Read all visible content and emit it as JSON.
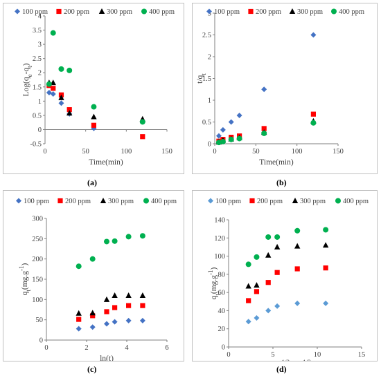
{
  "chart_data": [
    {
      "type": "scatter",
      "panel_label": "(a)",
      "xlabel": "Time(min)",
      "ylabel_main": "Log(q",
      "ylabel_sub1": "e",
      "ylabel_mid": "-q",
      "ylabel_sub2": "t",
      "ylabel_end": ")",
      "xlim": [
        0,
        150
      ],
      "ylim": [
        -0.5,
        4
      ],
      "xticks": [
        0,
        50,
        100,
        150
      ],
      "xtick_labels": [
        "0",
        "50",
        "100",
        "150"
      ],
      "yticks": [
        -0.5,
        0,
        0.5,
        1,
        1.5,
        2,
        2.5,
        3,
        3.5,
        4
      ],
      "ytick_labels": [
        "-0.5",
        "0",
        "0.5",
        "1",
        "1.5",
        "2",
        "2.5",
        "3",
        "3.5",
        "4"
      ],
      "legend_position": "top",
      "series": [
        {
          "name": "100 ppm",
          "color": "#4472c4",
          "marker": "diamond",
          "x": [
            5,
            10,
            20,
            30,
            60
          ],
          "y": [
            1.3,
            1.25,
            0.93,
            0.55,
            0.04
          ]
        },
        {
          "name": "200 ppm",
          "color": "#ff0000",
          "marker": "square",
          "x": [
            5,
            10,
            20,
            30,
            60,
            120
          ],
          "y": [
            1.55,
            1.45,
            1.22,
            0.7,
            0.15,
            -0.25
          ]
        },
        {
          "name": "300 ppm",
          "color": "#000000",
          "marker": "triangle",
          "x": [
            5,
            10,
            20,
            30,
            60,
            120
          ],
          "y": [
            1.65,
            1.65,
            1.12,
            0.58,
            0.45,
            0.37
          ]
        },
        {
          "name": "400 ppm",
          "color": "#00b050",
          "marker": "circle",
          "x": [
            5,
            10,
            20,
            30,
            60,
            120
          ],
          "y": [
            1.6,
            3.4,
            2.13,
            2.08,
            0.8,
            0.27
          ]
        }
      ]
    },
    {
      "type": "scatter",
      "panel_label": "(b)",
      "xlabel": "Time(min)",
      "ylabel_main": "t/q",
      "ylabel_sub1": "t",
      "xlim": [
        0,
        150
      ],
      "ylim": [
        0,
        3
      ],
      "xticks": [
        0,
        50,
        100,
        150
      ],
      "xtick_labels": [
        "0",
        "50",
        "100",
        "150"
      ],
      "yticks": [
        0,
        0.5,
        1,
        1.5,
        2,
        2.5,
        3
      ],
      "ytick_labels": [
        "0",
        "0.5",
        "1",
        "1.5",
        "2",
        "2.5",
        "3"
      ],
      "legend_position": "top",
      "series": [
        {
          "name": "100 ppm",
          "color": "#4472c4",
          "marker": "diamond",
          "x": [
            5,
            10,
            20,
            30,
            60,
            120
          ],
          "y": [
            0.18,
            0.32,
            0.5,
            0.65,
            1.25,
            2.5
          ]
        },
        {
          "name": "200 ppm",
          "color": "#ff0000",
          "marker": "square",
          "x": [
            5,
            10,
            20,
            30,
            60,
            120
          ],
          "y": [
            0.06,
            0.1,
            0.15,
            0.18,
            0.35,
            0.68
          ]
        },
        {
          "name": "300 ppm",
          "color": "#000000",
          "marker": "triangle",
          "x": [
            5,
            10,
            20,
            30,
            60,
            120
          ],
          "y": [
            0.04,
            0.08,
            0.11,
            0.14,
            0.26,
            0.52
          ]
        },
        {
          "name": "400 ppm",
          "color": "#00b050",
          "marker": "circle",
          "x": [
            5,
            10,
            20,
            30,
            60,
            120
          ],
          "y": [
            0.03,
            0.05,
            0.1,
            0.12,
            0.24,
            0.48
          ]
        }
      ]
    },
    {
      "type": "scatter",
      "panel_label": "(c)",
      "xlabel": "ln(t)",
      "ylabel_main": "q",
      "ylabel_sub1": "t",
      "ylabel_mid": "(mg.g",
      "ylabel_sup": "-1",
      "ylabel_end": ")",
      "xlim": [
        0,
        6
      ],
      "ylim": [
        0,
        300
      ],
      "xticks": [
        0,
        2,
        4,
        6
      ],
      "xtick_labels": [
        "0",
        "2",
        "4",
        "6"
      ],
      "yticks": [
        0,
        50,
        100,
        150,
        200,
        250,
        300
      ],
      "ytick_labels": [
        "0",
        "50",
        "100",
        "150",
        "200",
        "250",
        "300"
      ],
      "legend_position": "top",
      "series": [
        {
          "name": "100 ppm",
          "color": "#4472c4",
          "marker": "diamond",
          "x": [
            1.61,
            2.3,
            3.0,
            3.4,
            4.09,
            4.79
          ],
          "y": [
            28,
            32,
            40,
            45,
            48,
            48
          ]
        },
        {
          "name": "200 ppm",
          "color": "#ff0000",
          "marker": "square",
          "x": [
            1.61,
            2.3,
            3.0,
            3.4,
            4.09,
            4.79
          ],
          "y": [
            51,
            60,
            70,
            80,
            85,
            85
          ]
        },
        {
          "name": "300 ppm",
          "color": "#000000",
          "marker": "triangle",
          "x": [
            1.61,
            2.3,
            3.0,
            3.4,
            4.09,
            4.79
          ],
          "y": [
            66,
            67,
            100,
            110,
            110,
            110
          ]
        },
        {
          "name": "400 ppm",
          "color": "#00b050",
          "marker": "circle",
          "x": [
            1.61,
            2.3,
            3.0,
            3.4,
            4.09,
            4.79
          ],
          "y": [
            182,
            200,
            243,
            244,
            255,
            257
          ]
        }
      ]
    },
    {
      "type": "scatter",
      "panel_label": "(d)",
      "xlabel_main": "t",
      "xlabel_sup1": "1/2",
      "xlabel_mid": "(dk)",
      "xlabel_sup2": "1/2",
      "ylabel_main": "q",
      "ylabel_sub1": "t",
      "ylabel_mid": "(mg.g",
      "ylabel_sup": "-1",
      "ylabel_end": ")",
      "xlim": [
        0,
        15
      ],
      "ylim": [
        0,
        140
      ],
      "xticks": [
        0,
        5,
        10,
        15
      ],
      "xtick_labels": [
        "0",
        "5",
        "10",
        "15"
      ],
      "yticks": [
        0,
        20,
        40,
        60,
        80,
        100,
        120,
        140
      ],
      "ytick_labels": [
        "0",
        "20",
        "40",
        "60",
        "80",
        "100",
        "120",
        "140"
      ],
      "legend_position": "top",
      "series": [
        {
          "name": "100 ppm",
          "color": "#5b9bd5",
          "marker": "diamond",
          "x": [
            2.24,
            3.16,
            4.47,
            5.48,
            7.75,
            10.95
          ],
          "y": [
            28,
            32,
            40,
            45,
            48,
            48
          ]
        },
        {
          "name": "200 ppm",
          "color": "#ff0000",
          "marker": "square",
          "x": [
            2.24,
            3.16,
            4.47,
            5.48,
            7.75,
            10.95
          ],
          "y": [
            51,
            61,
            71,
            82,
            86,
            87
          ]
        },
        {
          "name": "300 ppm",
          "color": "#000000",
          "marker": "triangle",
          "x": [
            2.24,
            3.16,
            4.47,
            5.48,
            7.75,
            10.95
          ],
          "y": [
            67,
            68,
            101,
            110,
            111,
            112
          ]
        },
        {
          "name": "400 ppm",
          "color": "#00b050",
          "marker": "circle",
          "x": [
            2.24,
            3.16,
            4.47,
            5.48,
            7.75,
            10.95
          ],
          "y": [
            91,
            99,
            121,
            121,
            128,
            129
          ]
        }
      ]
    }
  ]
}
